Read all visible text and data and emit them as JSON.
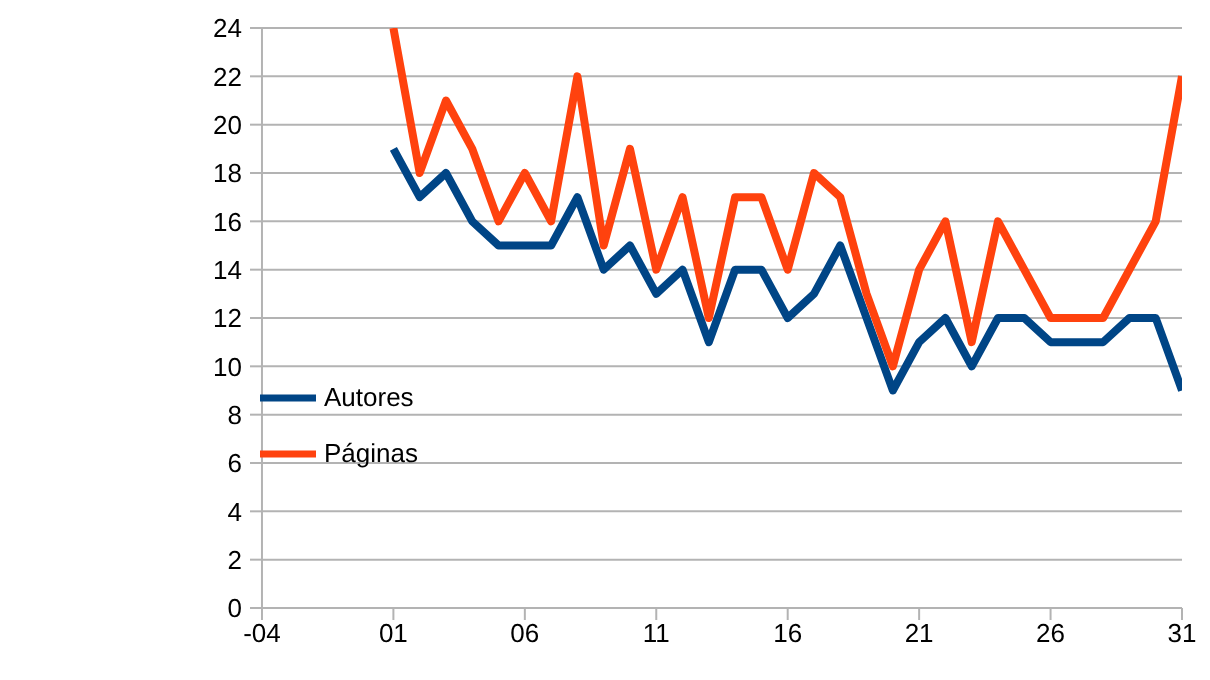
{
  "chart_data": {
    "type": "line",
    "x": [
      1,
      2,
      3,
      4,
      5,
      6,
      7,
      8,
      9,
      10,
      11,
      12,
      13,
      14,
      15,
      16,
      17,
      18,
      19,
      20,
      21,
      22,
      23,
      24,
      25,
      26,
      27,
      28,
      29,
      30,
      31
    ],
    "series": [
      {
        "name": "Autores",
        "color": "#004586",
        "values": [
          19,
          17,
          18,
          16,
          15,
          15,
          15,
          17,
          14,
          15,
          13,
          14,
          11,
          14,
          14,
          12,
          13,
          15,
          12,
          9,
          11,
          12,
          10,
          12,
          12,
          11,
          11,
          11,
          12,
          12,
          9
        ]
      },
      {
        "name": "Páginas",
        "color": "#ff420e",
        "values": [
          24,
          18,
          21,
          19,
          16,
          18,
          16,
          22,
          15,
          19,
          14,
          17,
          12,
          17,
          17,
          14,
          18,
          17,
          13,
          10,
          14,
          16,
          11,
          16,
          14,
          12,
          12,
          12,
          14,
          16,
          22
        ]
      }
    ],
    "xlim": [
      -4,
      31
    ],
    "xticks": [
      {
        "value": -4,
        "label": "-04"
      },
      {
        "value": 1,
        "label": "01"
      },
      {
        "value": 6,
        "label": "06"
      },
      {
        "value": 11,
        "label": "11"
      },
      {
        "value": 16,
        "label": "16"
      },
      {
        "value": 21,
        "label": "21"
      },
      {
        "value": 26,
        "label": "26"
      },
      {
        "value": 31,
        "label": "31"
      }
    ],
    "ylim": [
      0,
      24
    ],
    "yticks": [
      0,
      2,
      4,
      6,
      8,
      10,
      12,
      14,
      16,
      18,
      20,
      22,
      24
    ],
    "grid": "y",
    "legend": "left",
    "marker": "none",
    "line_style": "solid"
  }
}
